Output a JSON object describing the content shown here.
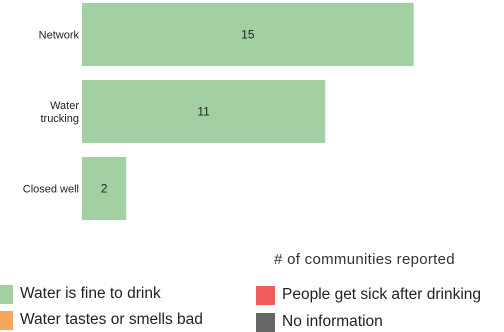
{
  "chart_data": {
    "type": "bar",
    "orientation": "horizontal",
    "categories": [
      "Network",
      "Water trucking",
      "Closed well"
    ],
    "category_lines": [
      [
        "Network"
      ],
      [
        "Water",
        "trucking"
      ],
      [
        "Closed well"
      ]
    ],
    "values": [
      15,
      11,
      2
    ],
    "xlim": [
      0,
      18
    ],
    "xlabel": "# of communities reported",
    "grid": false,
    "bar_color": "#a3d0a3",
    "legend_position": "bottom",
    "legend": [
      {
        "label": "Water is fine to drink",
        "color": "#a3d0a3"
      },
      {
        "label": "People get sick after drinking",
        "color": "#f05c5c"
      },
      {
        "label": "Water tastes or smells bad",
        "color": "#f6a65a"
      },
      {
        "label": "No information",
        "color": "#666666"
      }
    ]
  }
}
